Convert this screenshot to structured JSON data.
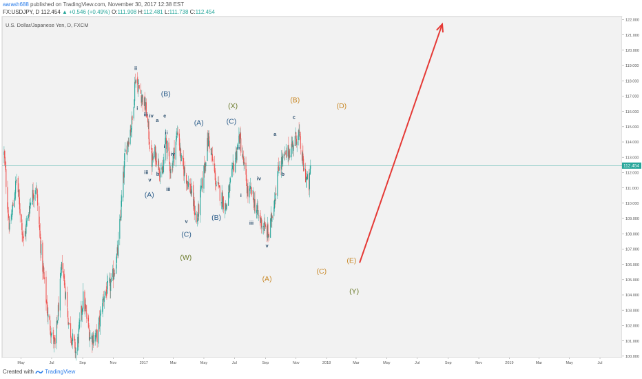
{
  "header": {
    "user": "aarash688",
    "published_text": " published on TradingView.com, November 30, 2017 12:38 EST",
    "symbol": "FX:USDJPY, D",
    "last": "112.454",
    "change": "+0.546 (+0.49%)",
    "o_label": "O:",
    "o_value": "111.908",
    "h_label": "H:",
    "h_value": "112.481",
    "l_label": "L:",
    "l_value": "111.738",
    "c_label": "C:",
    "c_value": "112.454"
  },
  "footer": {
    "created_with": "Created with",
    "brand": "TradingView"
  },
  "chart_data": {
    "type": "candlestick",
    "instrument_label": "U.S. Dollar/Japanese Yen, D, FXCM",
    "y_range": [
      99.9,
      122.2
    ],
    "y_ticks": [
      "122.000",
      "121.000",
      "120.000",
      "119.000",
      "118.000",
      "117.000",
      "116.000",
      "115.000",
      "114.000",
      "113.000",
      "112.000",
      "111.000",
      "110.000",
      "109.000",
      "108.000",
      "107.000",
      "106.000",
      "105.000",
      "104.000",
      "103.000",
      "102.000",
      "101.000",
      "100.000"
    ],
    "last_price": 112.454,
    "last_price_label": "112.454",
    "x_ticks": [
      "May",
      "Jul",
      "Sep",
      "Nov",
      "2017",
      "Mar",
      "May",
      "Jul",
      "Sep",
      "Nov",
      "2018",
      "Mar",
      "May",
      "Jul",
      "Sep",
      "Nov",
      "2019",
      "Mar",
      "May",
      "Jul"
    ],
    "up_color": "#26a69a",
    "down_color": "#ef5350",
    "close_path": [
      [
        "2016-03-28",
        113.2
      ],
      [
        "2016-04-08",
        108.2
      ],
      [
        "2016-04-22",
        111.6
      ],
      [
        "2016-05-06",
        107.5
      ],
      [
        "2016-05-20",
        110.2
      ],
      [
        "2016-05-31",
        111.2
      ],
      [
        "2016-06-10",
        106.8
      ],
      [
        "2016-06-24",
        102.5
      ],
      [
        "2016-07-08",
        100.6
      ],
      [
        "2016-07-22",
        106.1
      ],
      [
        "2016-08-05",
        101.9
      ],
      [
        "2016-08-19",
        100.2
      ],
      [
        "2016-09-02",
        103.8
      ],
      [
        "2016-09-16",
        101.2
      ],
      [
        "2016-09-30",
        101.3
      ],
      [
        "2016-10-14",
        104.1
      ],
      [
        "2016-10-28",
        104.7
      ],
      [
        "2016-11-10",
        106.8
      ],
      [
        "2016-11-25",
        113.3
      ],
      [
        "2016-12-09",
        115.4
      ],
      [
        "2016-12-15",
        118.2
      ],
      [
        "2016-12-28",
        117.0
      ],
      [
        "2017-01-06",
        116.0
      ],
      [
        "2017-01-17",
        112.7
      ],
      [
        "2017-01-24",
        113.3
      ],
      [
        "2017-02-07",
        111.7
      ],
      [
        "2017-02-14",
        114.2
      ],
      [
        "2017-02-24",
        112.1
      ],
      [
        "2017-03-10",
        114.8
      ],
      [
        "2017-03-17",
        112.7
      ],
      [
        "2017-04-07",
        110.6
      ],
      [
        "2017-04-17",
        108.7
      ],
      [
        "2017-05-10",
        114.3
      ],
      [
        "2017-05-26",
        111.2
      ],
      [
        "2017-06-14",
        109.7
      ],
      [
        "2017-07-11",
        114.4
      ],
      [
        "2017-07-28",
        110.6
      ],
      [
        "2017-08-04",
        110.7
      ],
      [
        "2017-08-18",
        109.1
      ],
      [
        "2017-09-08",
        107.9
      ],
      [
        "2017-09-29",
        112.6
      ],
      [
        "2017-10-06",
        112.8
      ],
      [
        "2017-10-20",
        113.5
      ],
      [
        "2017-11-06",
        114.6
      ],
      [
        "2017-11-17",
        112.1
      ],
      [
        "2017-11-27",
        111.1
      ],
      [
        "2017-11-30",
        112.45
      ]
    ],
    "projection_arrow": {
      "from": [
        "2018-03-08",
        106.1
      ],
      "to": [
        "2018-08-20",
        121.7
      ],
      "color": "#e53935"
    },
    "labels": [
      {
        "text": "ii",
        "date": "2016-12-16",
        "price": 118.7,
        "color": "#2c4f6e"
      },
      {
        "text": "i",
        "date": "2016-12-19",
        "price": 116.1,
        "color": "#2c4f6e"
      },
      {
        "text": "iii",
        "date": "2017-01-05",
        "price": 115.7,
        "color": "#2c4f6e"
      },
      {
        "text": "iv",
        "date": "2017-01-16",
        "price": 115.6,
        "color": "#2c4f6e"
      },
      {
        "text": "a",
        "date": "2017-01-28",
        "price": 115.3,
        "color": "#2c4f6e"
      },
      {
        "text": "c",
        "date": "2017-02-12",
        "price": 115.6,
        "color": "#2c4f6e"
      },
      {
        "text": "ii",
        "date": "2017-02-15",
        "price": 114.5,
        "color": "#2c4f6e"
      },
      {
        "text": "i",
        "date": "2017-02-11",
        "price": 113.6,
        "color": "#2c4f6e"
      },
      {
        "text": "iv",
        "date": "2017-02-28",
        "price": 113.1,
        "color": "#2c4f6e"
      },
      {
        "text": "iii",
        "date": "2017-01-06",
        "price": 111.9,
        "color": "#2c4f6e"
      },
      {
        "text": "v",
        "date": "2017-01-13",
        "price": 111.4,
        "color": "#2c4f6e"
      },
      {
        "text": "b",
        "date": "2017-01-29",
        "price": 111.8,
        "color": "#2c4f6e"
      },
      {
        "text": "iii",
        "date": "2017-02-19",
        "price": 110.8,
        "color": "#2c4f6e"
      },
      {
        "text": "v",
        "date": "2017-03-27",
        "price": 108.7,
        "color": "#2c4f6e"
      },
      {
        "text": "(B)",
        "date": "2017-02-14",
        "price": 117.0,
        "color": "#2c5d8a"
      },
      {
        "text": "(A)",
        "date": "2017-01-12",
        "price": 110.4,
        "color": "#2c5d8a"
      },
      {
        "text": "(C)",
        "date": "2017-03-27",
        "price": 107.8,
        "color": "#2c5d8a"
      },
      {
        "text": "(A)",
        "date": "2017-04-21",
        "price": 115.1,
        "color": "#2c5d8a"
      },
      {
        "text": "(B)",
        "date": "2017-05-26",
        "price": 108.9,
        "color": "#2c5d8a"
      },
      {
        "text": "(C)",
        "date": "2017-06-25",
        "price": 115.2,
        "color": "#2c5d8a"
      },
      {
        "text": "(X)",
        "date": "2017-06-28",
        "price": 116.2,
        "color": "#6b7a2a"
      },
      {
        "text": "(W)",
        "date": "2017-03-26",
        "price": 106.3,
        "color": "#6b7a2a"
      },
      {
        "text": "ii",
        "date": "2017-07-10",
        "price": 113.5,
        "color": "#2c4f6e"
      },
      {
        "text": "i",
        "date": "2017-07-14",
        "price": 110.4,
        "color": "#2c4f6e"
      },
      {
        "text": "iv",
        "date": "2017-08-19",
        "price": 111.5,
        "color": "#2c4f6e"
      },
      {
        "text": "iii",
        "date": "2017-08-04",
        "price": 108.6,
        "color": "#2c4f6e"
      },
      {
        "text": "v",
        "date": "2017-09-04",
        "price": 107.1,
        "color": "#2c4f6e"
      },
      {
        "text": "a",
        "date": "2017-09-20",
        "price": 114.4,
        "color": "#2c4f6e"
      },
      {
        "text": "b",
        "date": "2017-10-06",
        "price": 111.8,
        "color": "#2c4f6e"
      },
      {
        "text": "c",
        "date": "2017-10-28",
        "price": 115.5,
        "color": "#2c4f6e"
      },
      {
        "text": "(B)",
        "date": "2017-10-30",
        "price": 116.6,
        "color": "#c98a2a"
      },
      {
        "text": "(A)",
        "date": "2017-09-04",
        "price": 104.9,
        "color": "#c98a2a"
      },
      {
        "text": "(C)",
        "date": "2017-12-22",
        "price": 105.4,
        "color": "#c98a2a"
      },
      {
        "text": "(D)",
        "date": "2018-01-31",
        "price": 116.2,
        "color": "#c98a2a"
      },
      {
        "text": "(E)",
        "date": "2018-02-20",
        "price": 106.1,
        "color": "#c98a2a"
      },
      {
        "text": "(Y)",
        "date": "2018-02-25",
        "price": 104.1,
        "color": "#6b7a2a"
      }
    ]
  }
}
